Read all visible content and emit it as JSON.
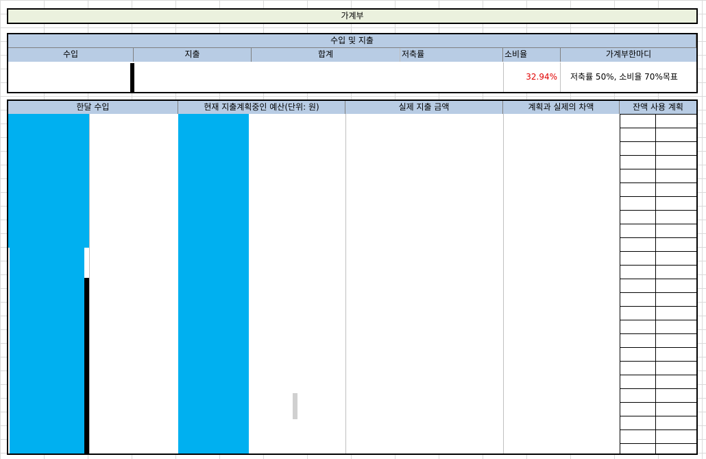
{
  "header": {
    "title": "가계부"
  },
  "summary": {
    "title": "수입 및 지출",
    "columns": [
      "수입",
      "지출",
      "합계",
      "저축률",
      "소비율",
      "가계부한마디"
    ],
    "consumption_rate": "32.94%",
    "comment": "저축률 50%, 소비율 70%목표"
  },
  "detail": {
    "columns": [
      "한달 수입",
      "현재 지출계획중인 예산(단위: 원)",
      "실제 지출 금액",
      "계획과 실제의 차액",
      "잔액 사용 계획"
    ]
  }
}
